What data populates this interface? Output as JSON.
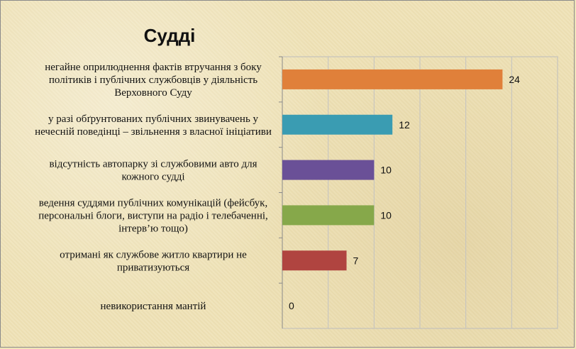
{
  "chart_data": {
    "type": "bar",
    "orientation": "horizontal",
    "title": "Судді",
    "categories": [
      "негайне оприлюднення фактів втручання з боку політиків і публічних службовців у діяльність Верховного Суду",
      "у разі обґрунтованих публічних звинувачень у нечесній поведінці – звільнення з власної ініціативи",
      "відсутність автопарку зі службовими авто для кожного судді",
      "ведення суддями публічних комунікацій (фейсбук, персональні блоги, виступи на радіо і телебаченні, інтерв’ю тощо)",
      "отримані як службове житло квартири не приватизуються",
      "невикористання мантій"
    ],
    "category_lines": [
      [
        "негайне оприлюднення фактів втручання з боку",
        "політиків і публічних службовців у діяльність",
        "Верховного Суду"
      ],
      [
        "у разі обґрунтованих публічних звинувачень у",
        "нечесній поведінці – звільнення з власної ініціативи"
      ],
      [
        "відсутність автопарку зі службовими авто для",
        "кожного судді"
      ],
      [
        "ведення суддями публічних комунікацій (фейсбук,",
        "персональні блоги, виступи на радіо і телебаченні,",
        "інтерв’ю тощо)"
      ],
      [
        "отримані як службове житло квартири не",
        "приватизуються"
      ],
      [
        "невикористання мантій"
      ]
    ],
    "values": [
      24,
      12,
      10,
      10,
      7,
      0
    ],
    "bar_colors": [
      "#e0803a",
      "#3a9cb2",
      "#6a5097",
      "#86a84a",
      "#b04440",
      "#4f79bc"
    ],
    "xlim": [
      0,
      30
    ],
    "grid": true,
    "legend": "none"
  }
}
